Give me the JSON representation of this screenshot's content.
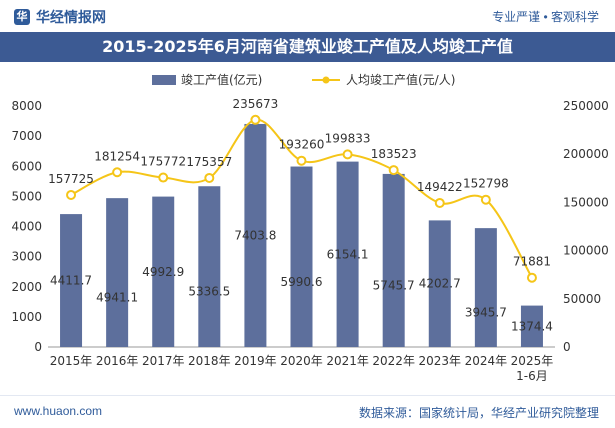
{
  "header": {
    "brand": "华经情报网",
    "tags": "专业严谨 • 客观科学"
  },
  "footer": {
    "url": "www.huaon.com",
    "source": "数据来源：国家统计局，华经产业研究院整理"
  },
  "chart_data": {
    "type": "bar+line",
    "title": "2015-2025年6月河南省建筑业竣工产值及人均竣工产值",
    "categories": [
      "2015年",
      "2016年",
      "2017年",
      "2018年",
      "2019年",
      "2020年",
      "2021年",
      "2022年",
      "2023年",
      "2024年",
      "2025年\n1-6月"
    ],
    "series": [
      {
        "name": "竣工产值(亿元)",
        "type": "bar",
        "axis": "left",
        "color": "#5d6f9c",
        "values": [
          4411.7,
          4941.1,
          4992.9,
          5336.5,
          7403.8,
          5990.6,
          6154.1,
          5745.7,
          4202.7,
          3945.7,
          1374.4
        ],
        "labels": [
          "4411.7",
          "4941.1",
          "4992.9",
          "5336.5",
          "7403.8",
          "5990.6",
          "6154.1",
          "5745.7",
          "4202.7",
          "3945.7",
          "1374.4"
        ]
      },
      {
        "name": "人均竣工产值(元/人)",
        "type": "line",
        "axis": "right",
        "color": "#f5c518",
        "values": [
          157725,
          181254,
          175772,
          175357,
          235673,
          193260,
          199833,
          183523,
          149422,
          152798,
          71881
        ],
        "labels": [
          "157725",
          "181254",
          "175772",
          "175357",
          "235673",
          "193260",
          "199833",
          "183523",
          "149422",
          "152798",
          "71881"
        ]
      }
    ],
    "y_left": {
      "min": 0,
      "max": 8000,
      "ticks": [
        "0",
        "1000",
        "2000",
        "3000",
        "4000",
        "5000",
        "6000",
        "7000",
        "8000"
      ]
    },
    "y_right": {
      "min": 0,
      "max": 250000,
      "ticks": [
        "0",
        "50000",
        "100000",
        "150000",
        "200000",
        "250000"
      ]
    },
    "legend_position": "top-center",
    "grid": false
  }
}
